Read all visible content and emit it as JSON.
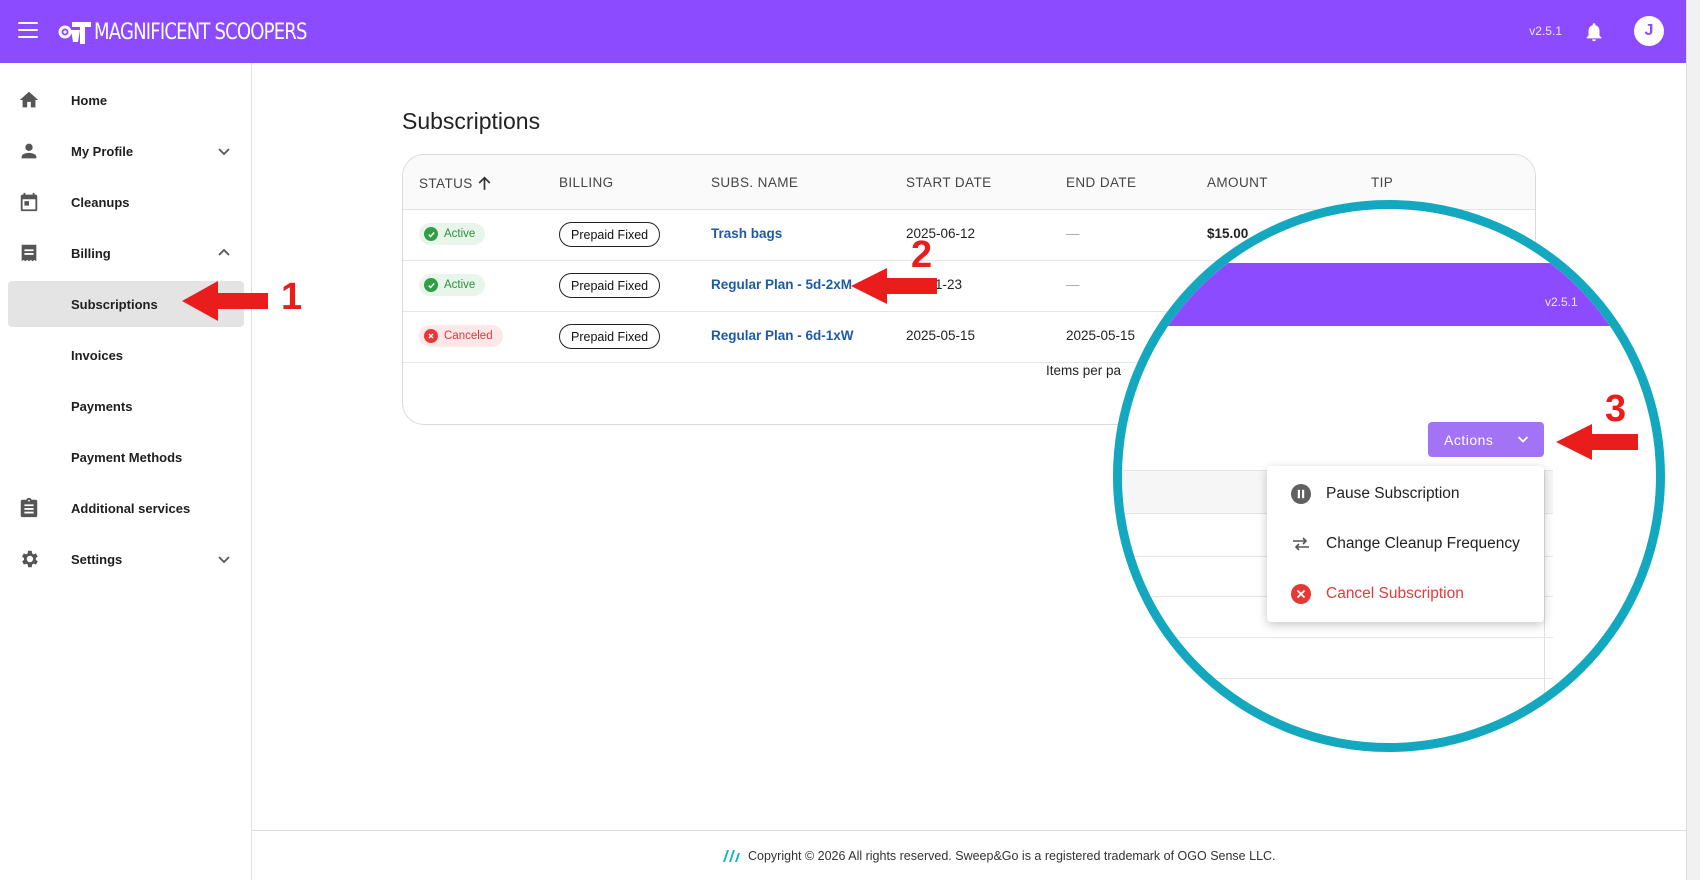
{
  "app": {
    "brand": "MAGNIFICENT SCOOPERS",
    "version": "v2.5.1",
    "user_initial": "J"
  },
  "sidebar": {
    "items": [
      {
        "label": "Home",
        "icon": "home-icon"
      },
      {
        "label": "My Profile",
        "icon": "person-icon",
        "expand": "chevron-down"
      },
      {
        "label": "Cleanups",
        "icon": "calendar-icon"
      },
      {
        "label": "Billing",
        "icon": "receipt-icon",
        "expand": "chevron-up"
      },
      {
        "label": "Subscriptions",
        "active": true
      },
      {
        "label": "Invoices"
      },
      {
        "label": "Payments"
      },
      {
        "label": "Payment Methods"
      },
      {
        "label": "Additional services",
        "icon": "clipboard-icon"
      },
      {
        "label": "Settings",
        "icon": "gear-icon",
        "expand": "chevron-down"
      }
    ]
  },
  "main": {
    "title": "Subscriptions",
    "columns": [
      "STATUS",
      "BILLING",
      "SUBS. NAME",
      "START DATE",
      "END DATE",
      "AMOUNT",
      "TIP"
    ],
    "rows": [
      {
        "status": "Active",
        "billing": "Prepaid Fixed",
        "name": "Trash bags",
        "start": "2025-06-12",
        "end": "—",
        "amount": "$15.00"
      },
      {
        "status": "Active",
        "billing": "Prepaid Fixed",
        "name": "Regular Plan - 5d-2xM",
        "start": "-01-23",
        "end": "—",
        "amount": ""
      },
      {
        "status": "Canceled",
        "billing": "Prepaid Fixed",
        "name": "Regular Plan - 6d-1xW",
        "start": "2025-05-15",
        "end": "2025-05-15",
        "amount": ""
      }
    ],
    "pagination_label": "Items per pa"
  },
  "annotations": [
    "1",
    "2",
    "3"
  ],
  "magnifier": {
    "version": "v2.5.1",
    "actions_label": "Actions",
    "menu": [
      {
        "label": "Pause Subscription",
        "icon": "pause-icon"
      },
      {
        "label": "Change Cleanup Frequency",
        "icon": "swap-arrows-icon"
      },
      {
        "label": "Cancel Subscription",
        "icon": "cancel-circle-icon"
      }
    ]
  },
  "footer": {
    "copyright": "Copyright © 2026 All rights reserved. Sweep&Go is a registered trademark of OGO Sense LLC."
  },
  "colors": {
    "brand_purple": "#8c4bff",
    "actions_purple": "#a273f4",
    "magnifier_ring": "#14a8c0",
    "annotation_red": "#ea1d1d",
    "link_blue": "#1f5aa6"
  }
}
